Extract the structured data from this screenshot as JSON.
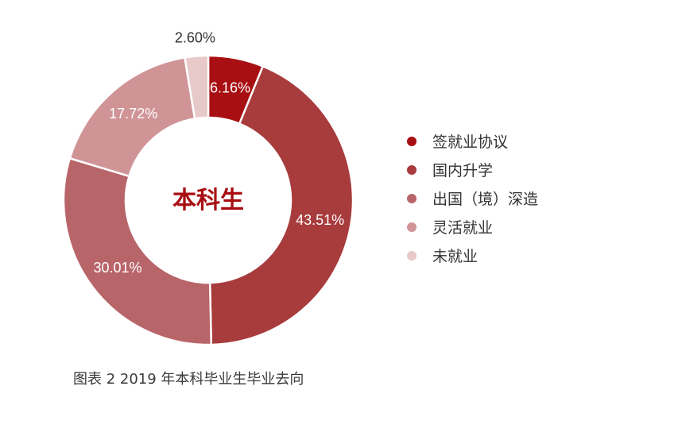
{
  "chart_data": {
    "type": "pie",
    "donut": true,
    "center_label": "本科生",
    "title": "",
    "series": [
      {
        "name": "签就业协议",
        "value": 6.16,
        "label": "6.16%",
        "color": "#a80f12"
      },
      {
        "name": "国内升学",
        "value": 43.51,
        "label": "43.51%",
        "color": "#a83b3c"
      },
      {
        "name": "出国（境）深造",
        "value": 30.01,
        "label": "30.01%",
        "color": "#b8656a"
      },
      {
        "name": "灵活就业",
        "value": 17.72,
        "label": "17.72%",
        "color": "#d09497"
      },
      {
        "name": "未就业",
        "value": 2.6,
        "label": "2.60%",
        "color": "#e8c9ca"
      }
    ],
    "legend_position": "right"
  },
  "caption": "图表 2  2019 年本科毕业生毕业去向",
  "colors": {
    "center_label": "#a80f12",
    "outside_label": "#333333",
    "inside_label": "#ffffff"
  }
}
